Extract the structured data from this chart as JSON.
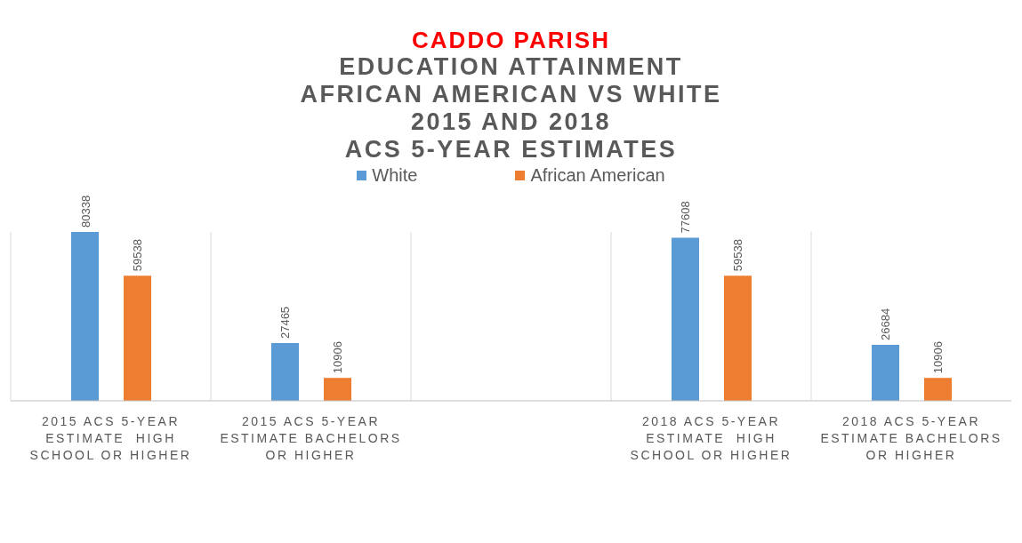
{
  "chart_data": {
    "type": "bar",
    "title": "CADDO PARISH",
    "subtitle": "EDUCATION ATTAINMENT\nAFRICAN AMERICAN VS WHITE\n2015 AND 2018\nACS 5-YEAR ESTIMATES",
    "categories": [
      "2015 ACS 5-YEAR ESTIMATE  HIGH SCHOOL OR HIGHER",
      "2015 ACS 5-YEAR ESTIMATE BACHELORS OR HIGHER",
      null,
      "2018 ACS 5-YEAR ESTIMATE  HIGH SCHOOL OR HIGHER",
      "2018 ACS 5-YEAR ESTIMATE BACHELORS OR HIGHER"
    ],
    "series": [
      {
        "name": "White",
        "color": "#5b9bd5",
        "values": [
          80338,
          27465,
          null,
          77608,
          26684
        ]
      },
      {
        "name": "African American",
        "color": "#ed7d31",
        "values": [
          59538,
          10906,
          null,
          59538,
          10906
        ]
      }
    ],
    "data_labels": true,
    "legend": "top",
    "grid": "x"
  }
}
